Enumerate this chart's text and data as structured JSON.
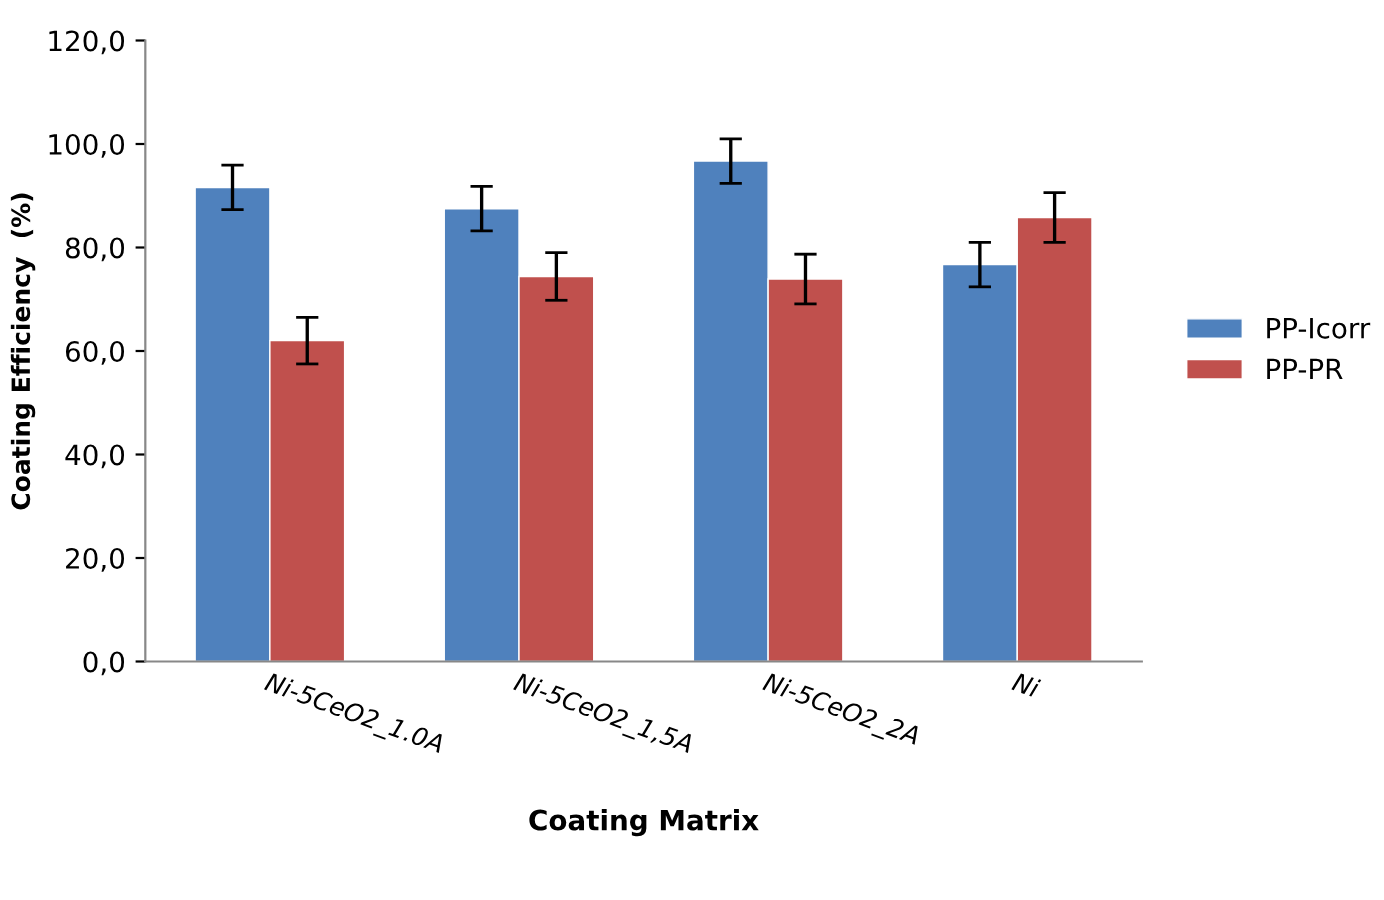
{
  "chart_data": {
    "type": "bar",
    "xlabel": "Coating Matrix",
    "ylabel": "Coating Efficiency  (%)",
    "categories": [
      "Ni-5CeO2_1.0A",
      "Ni-5CeO2_1,5A",
      "Ni-5CeO2_2A",
      "Ni"
    ],
    "series": [
      {
        "name": "PP-Icorr",
        "color": "#4f81bd",
        "values": [
          91.6,
          87.5,
          96.7,
          76.7
        ],
        "errors": [
          4.3,
          4.3,
          4.3,
          4.3
        ]
      },
      {
        "name": "PP-PR",
        "color": "#c0504d",
        "values": [
          62.0,
          74.4,
          73.9,
          85.8
        ],
        "errors": [
          4.5,
          4.6,
          4.8,
          4.8
        ]
      }
    ],
    "ylim": [
      0,
      120
    ],
    "yticks": [
      {
        "value": 0,
        "label": "0,0"
      },
      {
        "value": 20,
        "label": "20,0"
      },
      {
        "value": 40,
        "label": "40,0"
      },
      {
        "value": 60,
        "label": "60,0"
      },
      {
        "value": 80,
        "label": "80,0"
      },
      {
        "value": 100,
        "label": "100,0"
      },
      {
        "value": 120,
        "label": "120,0"
      }
    ],
    "grid": false,
    "legend": "right"
  }
}
